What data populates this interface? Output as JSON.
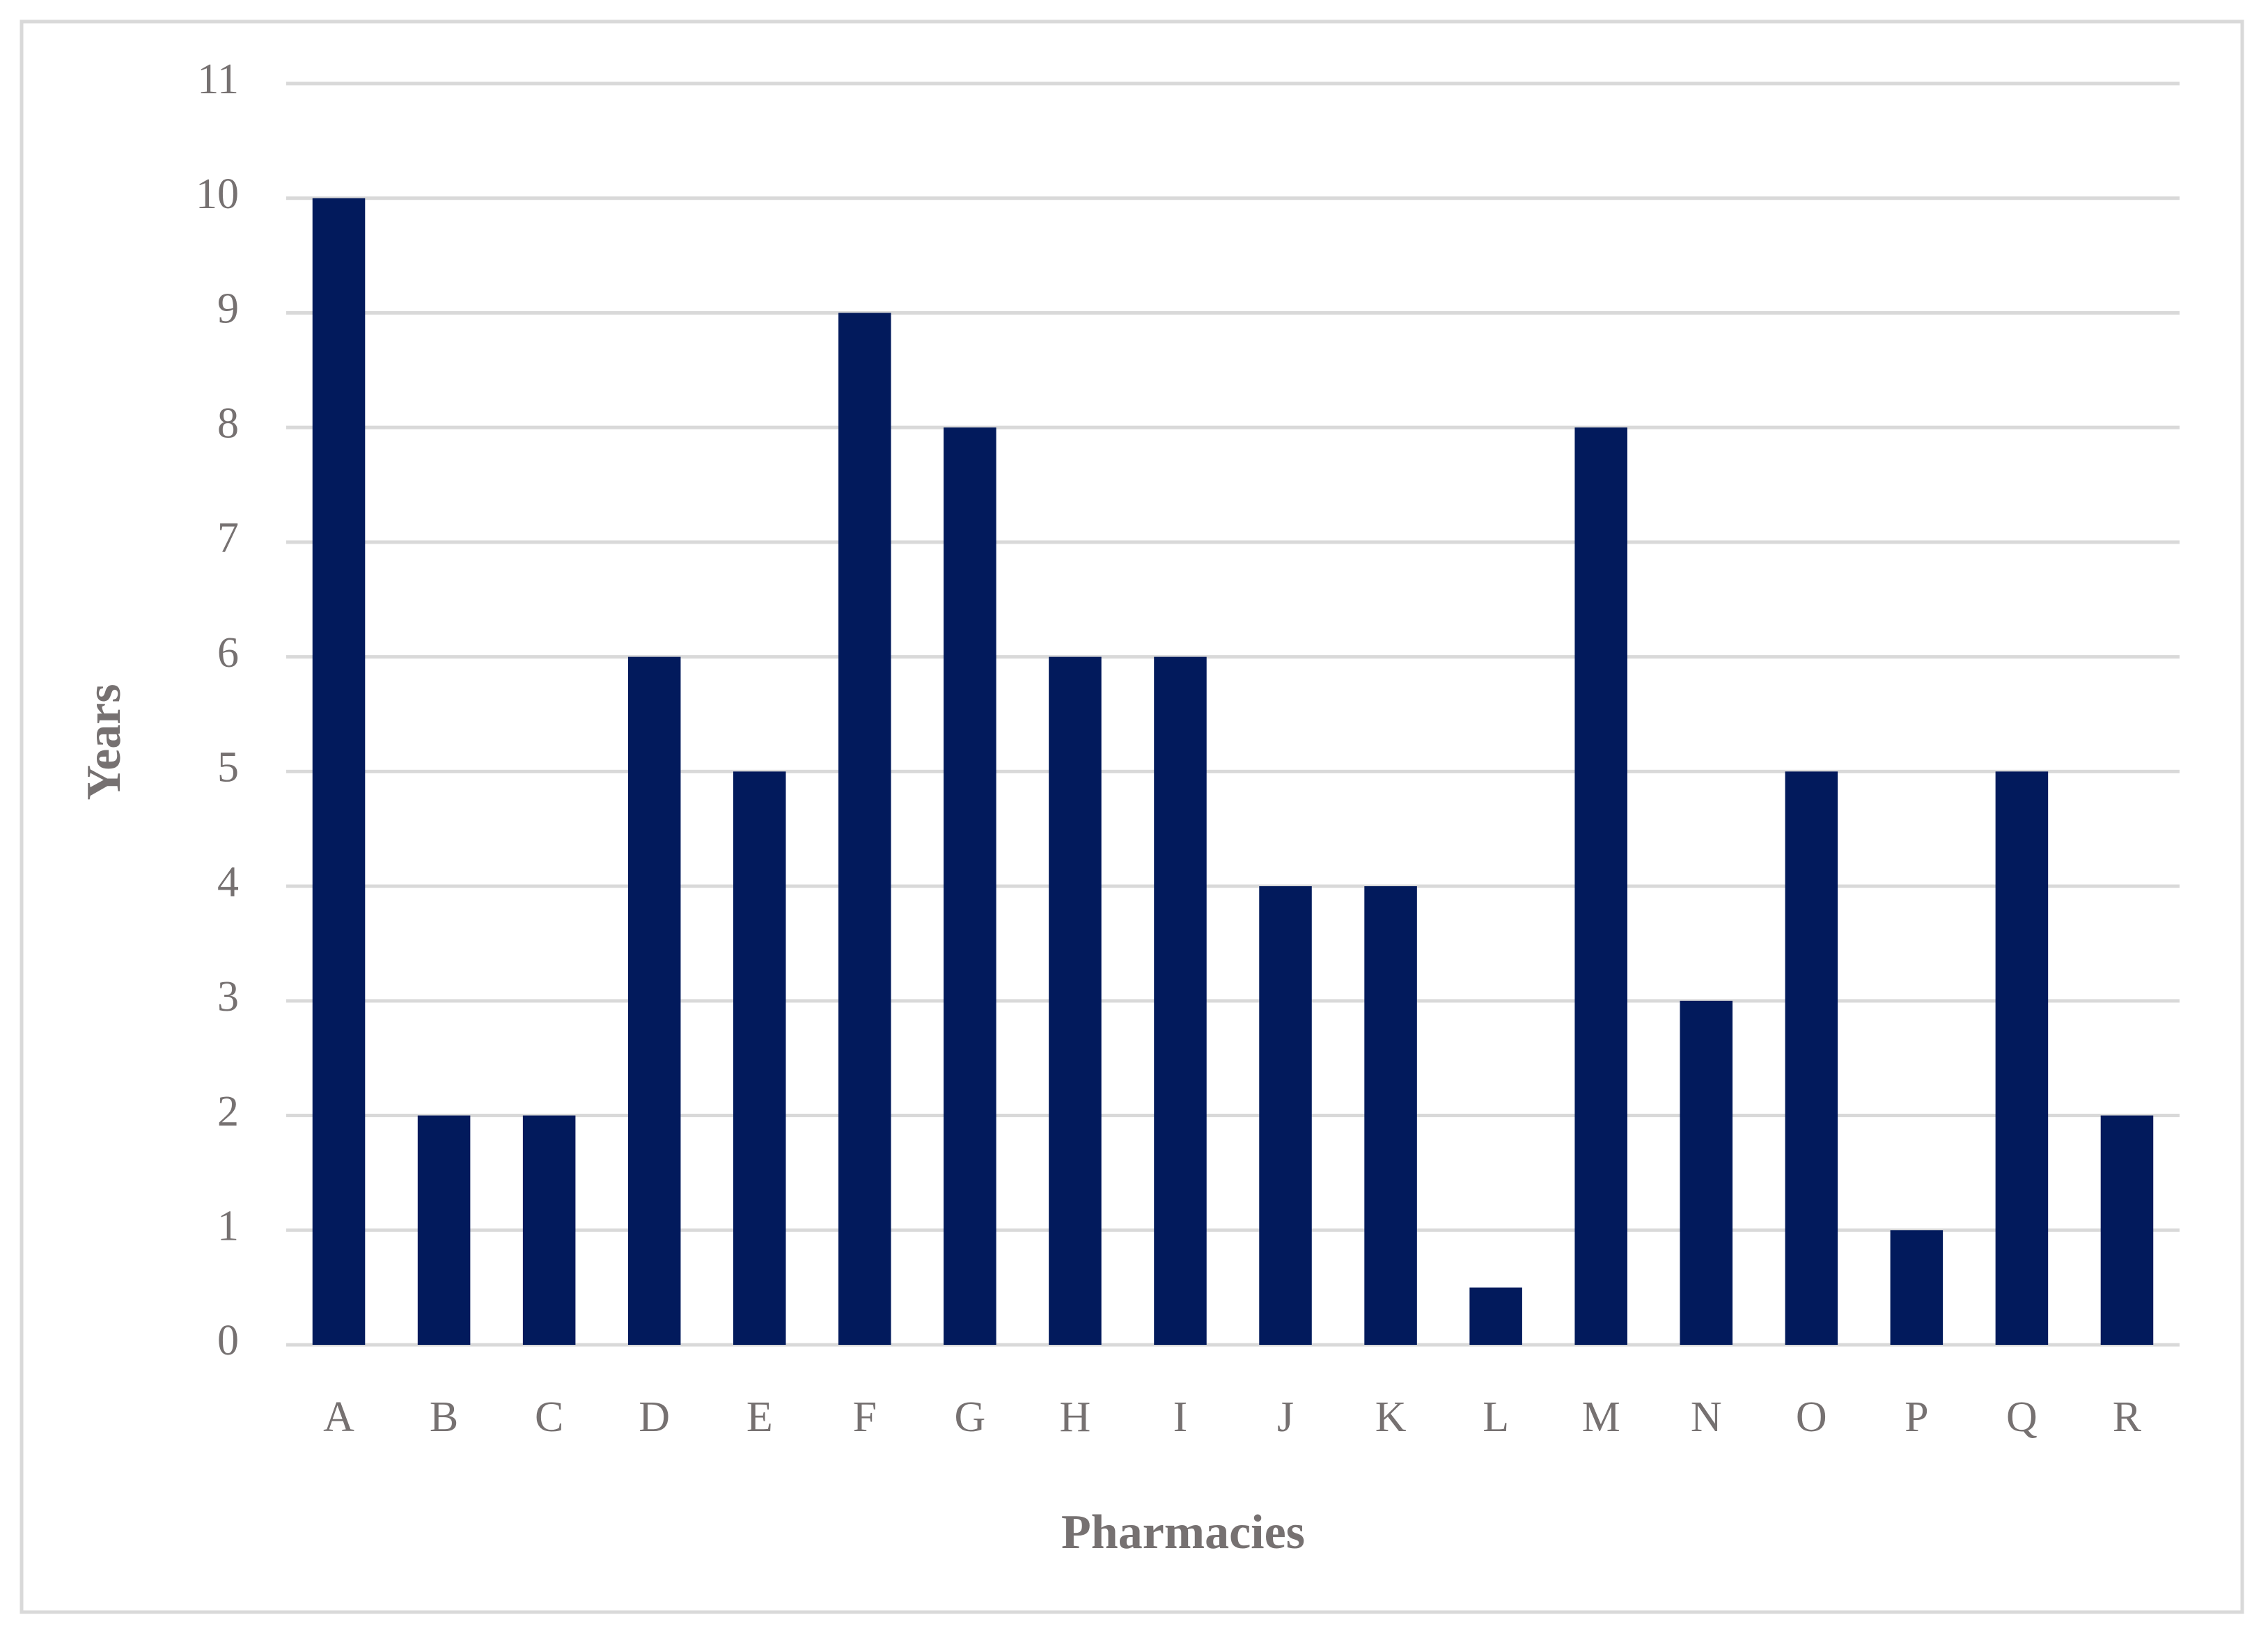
{
  "chart_data": {
    "type": "bar",
    "x_label": "Pharmacies",
    "y_label": "Years",
    "categories": [
      "A",
      "B",
      "C",
      "D",
      "E",
      "F",
      "G",
      "H",
      "I",
      "J",
      "K",
      "L",
      "M",
      "N",
      "O",
      "P",
      "Q",
      "R"
    ],
    "values": [
      10,
      2,
      2,
      6,
      5,
      9,
      8,
      6,
      6,
      4,
      4,
      0.5,
      8,
      3,
      5,
      1,
      5,
      2
    ],
    "color": "#021a5c",
    "ylim": [
      0,
      11
    ],
    "yticks": [
      0,
      1,
      2,
      3,
      4,
      5,
      6,
      7,
      8,
      9,
      10,
      11
    ],
    "grid": true
  }
}
